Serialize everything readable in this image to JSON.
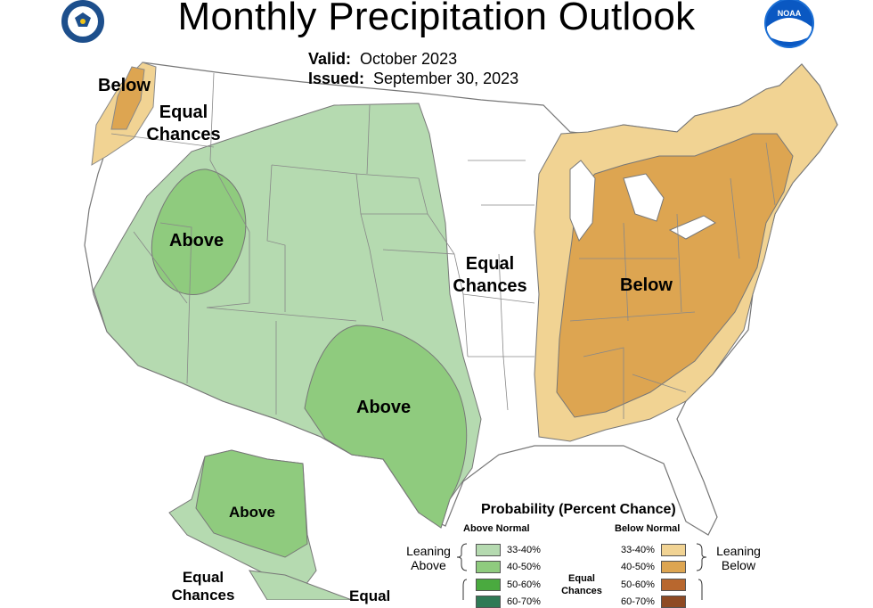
{
  "title": "Monthly Precipitation Outlook",
  "valid": {
    "label": "Valid:",
    "value": "October 2023"
  },
  "issued": {
    "label": "Issued:",
    "value": "September 30, 2023"
  },
  "logos": {
    "left": "commerce-seal-icon",
    "right": "noaa-logo-icon"
  },
  "colors": {
    "above_33_40": "#b5dab0",
    "above_40_50": "#8fcb7e",
    "above_50_60": "#4aaa3f",
    "above_60_70": "#2f7a55",
    "below_33_40": "#f1d393",
    "below_40_50": "#dda551",
    "below_50_60": "#b8672e",
    "below_60_70": "#8e4a23",
    "boundary": "#888888"
  },
  "map_labels": {
    "nw_below": "Below",
    "nw_equal_1": "Equal",
    "nw_equal_2": "Chances",
    "west_above": "Above",
    "center_equal_1": "Equal",
    "center_equal_2": "Chances",
    "east_below": "Below",
    "texas_above": "Above",
    "alaska_above": "Above",
    "alaska_equal_1": "Equal",
    "alaska_equal_2": "Chances",
    "bottom_equal": "Equal"
  },
  "legend": {
    "title": "Probability (Percent Chance)",
    "above_header": "Above Normal",
    "below_header": "Below Normal",
    "leaning_above_1": "Leaning",
    "leaning_above_2": "Above",
    "leaning_below_1": "Leaning",
    "leaning_below_2": "Below",
    "equal_1": "Equal",
    "equal_2": "Chances",
    "above_rows": [
      "33-40%",
      "40-50%",
      "50-60%",
      "60-70%"
    ],
    "below_rows": [
      "33-40%",
      "40-50%",
      "50-60%",
      "60-70%"
    ]
  }
}
